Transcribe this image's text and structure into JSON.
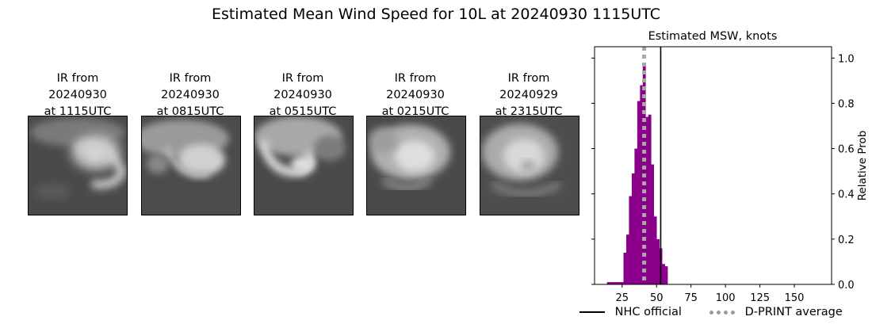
{
  "figure": {
    "title": "Estimated Mean Wind Speed for 10L at 20240930 1115UTC"
  },
  "ir_panels": [
    {
      "line1": "IR from",
      "line2": "20240930",
      "line3": "at 1115UTC"
    },
    {
      "line1": "IR from",
      "line2": "20240930",
      "line3": "at 0815UTC"
    },
    {
      "line1": "IR from",
      "line2": "20240930",
      "line3": "at 0515UTC"
    },
    {
      "line1": "IR from",
      "line2": "20240930",
      "line3": "at 0215UTC"
    },
    {
      "line1": "IR from",
      "line2": "20240929",
      "line3": "at 2315UTC"
    }
  ],
  "chart_data": {
    "type": "bar",
    "title": "Estimated MSW, knots",
    "xlabel": "",
    "ylabel": "Relative Prob",
    "xlim": [
      5,
      177
    ],
    "ylim": [
      0,
      1.05
    ],
    "xticks": [
      25,
      50,
      75,
      100,
      125,
      150
    ],
    "yticks": [
      0.0,
      0.2,
      0.4,
      0.6,
      0.8,
      1.0
    ],
    "bar_color": "#8b008b",
    "bin_width": 2,
    "bins": [
      {
        "x": 15,
        "value": 0.01
      },
      {
        "x": 17,
        "value": 0.01
      },
      {
        "x": 19,
        "value": 0.01
      },
      {
        "x": 21,
        "value": 0.01
      },
      {
        "x": 23,
        "value": 0.01
      },
      {
        "x": 25,
        "value": 0.01
      },
      {
        "x": 27,
        "value": 0.14
      },
      {
        "x": 29,
        "value": 0.22
      },
      {
        "x": 31,
        "value": 0.39
      },
      {
        "x": 33,
        "value": 0.49
      },
      {
        "x": 35,
        "value": 0.6
      },
      {
        "x": 37,
        "value": 0.81
      },
      {
        "x": 39,
        "value": 0.88
      },
      {
        "x": 41,
        "value": 0.98
      },
      {
        "x": 43,
        "value": 0.74
      },
      {
        "x": 45,
        "value": 0.75
      },
      {
        "x": 47,
        "value": 0.53
      },
      {
        "x": 49,
        "value": 0.3
      },
      {
        "x": 51,
        "value": 0.2
      },
      {
        "x": 53,
        "value": 0.16
      },
      {
        "x": 55,
        "value": 0.09
      },
      {
        "x": 57,
        "value": 0.08
      }
    ],
    "nhc_official": 53,
    "dprint_average": 41,
    "legend": {
      "nhc_label": "NHC official",
      "dprint_label": "D-PRINT average"
    },
    "legend_placement": "bottom-right",
    "grid": false
  }
}
